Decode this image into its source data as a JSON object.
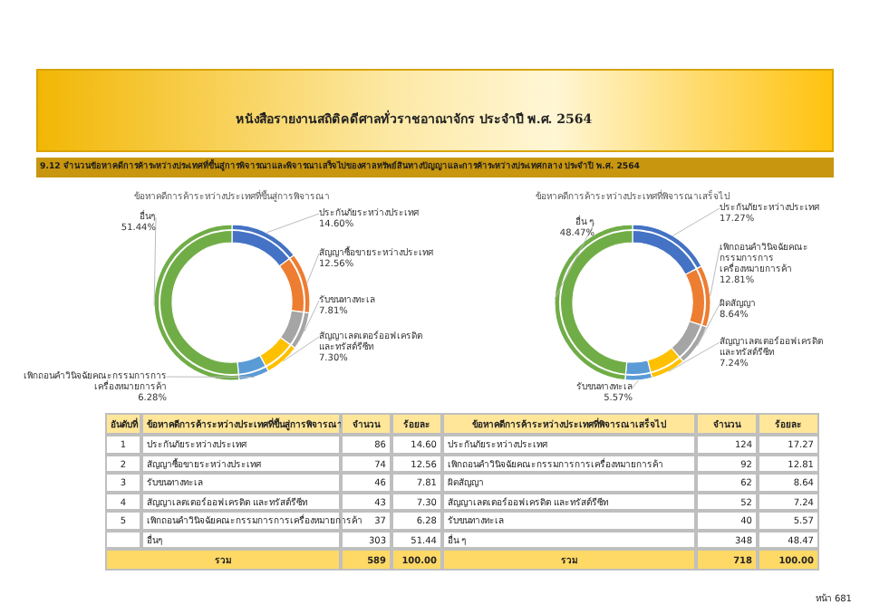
{
  "chart_data": [
    {
      "type": "donut",
      "title": "ข้อหาคดีการค้าระหว่างประเทศที่ขึ้นสู่การพิจารณา",
      "categories": [
        "ประกันภัยระหว่างประเทศ",
        "สัญญาซื้อขายระหว่างประเทศ",
        "รับขนทางทะเล",
        "สัญญาเลตเตอร์ออฟเครดิต และทรัสต์รีซีท",
        "เพิกถอนคำวินิจฉัยคณะกรรมการการเครื่องหมายการค้า",
        "อื่นๆ"
      ],
      "values": [
        14.6,
        12.56,
        7.81,
        7.3,
        6.28,
        51.44
      ],
      "colors": [
        "#4472c4",
        "#ed7d31",
        "#a5a5a5",
        "#ffc000",
        "#5b9bd5",
        "#70ad47"
      ],
      "value_labels": [
        "14.60%",
        "12.56%",
        "7.81%",
        "7.30%",
        "6.28%",
        "51.44%"
      ],
      "annotations": [
        "อันดับที่",
        "ข้อหาคดีการค้าระหว่างประเทศที่ขึ้นสู่การพิจารณา",
        "จำนวน",
        "ร้อยละ",
        "1",
        "2",
        "3",
        "4",
        "5",
        "86",
        "74",
        "46",
        "43",
        "37",
        "303",
        "14.60",
        "12.56",
        "7.81",
        "7.30",
        "6.28",
        "51.44",
        "รวม",
        "589",
        "100.00",
        "หนังสือรายงานสถิติคดีศาลทั่วราชอาณาจักร ประจำปี พ.ศ. 2564",
        "9.12 จำนวนข้อหาคดีการค้าระหว่างประเทศที่ขึ้นสู่การพิจารณาและพิจารณาเสร็จไปของศาลทรัพย์สินทางปัญญาและการค้าระหว่างประเทศกลาง ประจำปี พ.ศ. 2564",
        "หน้า 681"
      ]
    },
    {
      "type": "donut",
      "title": "ข้อหาคดีการค้าระหว่างประเทศที่พิจารณาเสร็จไป",
      "categories": [
        "ประกันภัยระหว่างประเทศ",
        "เพิกถอนคำวินิจฉัยคณะกรรมการการเครื่องหมายการค้า",
        "ผิดสัญญา",
        "สัญญาเลตเตอร์ออฟเครดิต และทรัสต์รีซีท",
        "รับขนทางทะเล",
        "อื่น ๆ"
      ],
      "values": [
        17.27,
        12.81,
        8.64,
        7.24,
        5.57,
        48.47
      ],
      "colors": [
        "#4472c4",
        "#ed7d31",
        "#a5a5a5",
        "#ffc000",
        "#5b9bd5",
        "#70ad47"
      ],
      "value_labels": [
        "17.27%",
        "12.81%",
        "8.64%",
        "7.24%",
        "5.57%",
        "48.47%"
      ],
      "annotations": [
        "ข้อหาคดีการค้าระหว่างประเทศที่พิจารณาเสร็จไป",
        "จำนวน",
        "ร้อยละ",
        "124",
        "92",
        "62",
        "52",
        "40",
        "348",
        "17.27",
        "12.81",
        "8.64",
        "7.24",
        "5.57",
        "48.47",
        "รวม",
        "718",
        "100.00"
      ]
    }
  ]
}
